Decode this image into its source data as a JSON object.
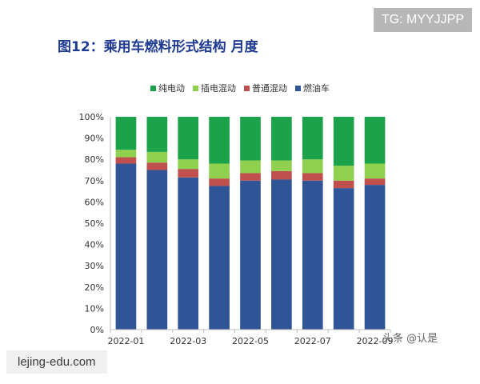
{
  "header": {
    "badge": "TG: MYYJJPP",
    "title": "图12：乘用车燃料形式结构 月度"
  },
  "footer": {
    "site": "lejing-edu.com",
    "watermark": "头条 @认是"
  },
  "colors": {
    "bev": "#1ca24b",
    "phev": "#8fd14f",
    "hev": "#c0504d",
    "ice": "#2f5597"
  },
  "chart_data": {
    "type": "bar",
    "stacked": true,
    "categories": [
      "2022-01",
      "2022-02",
      "2022-03",
      "2022-04",
      "2022-05",
      "2022-06",
      "2022-07",
      "2022-08",
      "2022-09"
    ],
    "x_tick_labels": [
      "2022-01",
      "",
      "2022-03",
      "",
      "2022-05",
      "",
      "2022-07",
      "",
      "2022-09"
    ],
    "y_ticks": [
      "0%",
      "10%",
      "20%",
      "30%",
      "40%",
      "50%",
      "60%",
      "70%",
      "80%",
      "90%",
      "100%"
    ],
    "ylim": [
      0,
      100
    ],
    "legend_position": "top",
    "series": [
      {
        "name": "燃油车",
        "color_key": "ice",
        "values": [
          78,
          75,
          71.5,
          67.5,
          70,
          70.5,
          70,
          66.5,
          68
        ]
      },
      {
        "name": "普通混动",
        "color_key": "hev",
        "values": [
          3,
          3.5,
          4,
          3.5,
          3.5,
          4,
          3.5,
          3.5,
          3
        ]
      },
      {
        "name": "插电混动",
        "color_key": "phev",
        "values": [
          3.5,
          5,
          4.5,
          7,
          6,
          5,
          6.5,
          7,
          7
        ]
      },
      {
        "name": "纯电动",
        "color_key": "bev",
        "values": [
          15.5,
          16.5,
          20,
          22,
          20.5,
          20.5,
          20,
          23,
          22
        ]
      }
    ],
    "legend_order": [
      "纯电动",
      "插电混动",
      "普通混动",
      "燃油车"
    ]
  }
}
